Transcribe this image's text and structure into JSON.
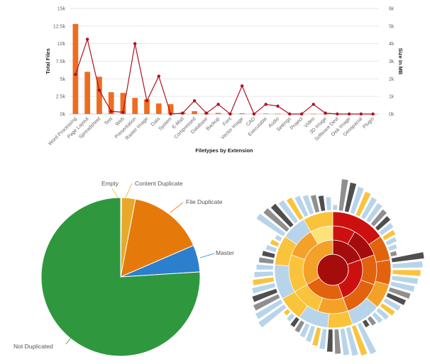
{
  "colors": {
    "bar": "#ef6c1f",
    "line": "#b0101f",
    "grid": "#e6e6e6",
    "pie_empty": "#f2c14f",
    "pie_content_duplicate": "#e8a92a",
    "pie_file_duplicate": "#e57a0a",
    "pie_master": "#2b7fcc",
    "pie_not_duplicated": "#2f973e"
  },
  "chart_data": [
    {
      "type": "bar",
      "xlabel": "Filetypes by Extension",
      "ylabel": "Total Files",
      "y2label": "Size in MB",
      "ylim": [
        0,
        15000
      ],
      "y2lim": [
        0,
        6000
      ],
      "yticks": [
        "0k",
        "2.5k",
        "5k",
        "7.5k",
        "10k",
        "12.5k",
        "15k"
      ],
      "y2ticks": [
        "0k",
        "1k",
        "2k",
        "3k",
        "4k",
        "5k",
        "6k"
      ],
      "categories": [
        "Word Processing",
        "Page Layout",
        "Spreadsheet",
        "Text",
        "Web",
        "Presentation",
        "Raster Image",
        "Data",
        "System",
        "E-Mail",
        "Compressed",
        "Database",
        "Backup",
        "Font",
        "Vector Image",
        "CAD",
        "Executable",
        "Audio",
        "Settings",
        "Project",
        "Video",
        "3D Image",
        "Software Devt",
        "Disk Image",
        "Geospacial",
        "Plugin"
      ],
      "series": [
        {
          "kind": "bar",
          "axis": "left",
          "values": [
            12800,
            6000,
            5300,
            3100,
            3000,
            2300,
            2100,
            1500,
            1400,
            200,
            400,
            150,
            150,
            80,
            100,
            50,
            60,
            40,
            30,
            30,
            25,
            20,
            15,
            10,
            10,
            5
          ]
        },
        {
          "kind": "line",
          "axis": "right",
          "values": [
            2250,
            4250,
            1350,
            150,
            100,
            4000,
            750,
            2150,
            0,
            50,
            750,
            50,
            550,
            0,
            1600,
            0,
            550,
            450,
            0,
            0,
            550,
            50,
            0,
            0,
            0,
            0
          ]
        }
      ],
      "grid": true
    },
    {
      "type": "pie",
      "slices": [
        {
          "label": "Empty",
          "value": 0.2
        },
        {
          "label": "Content Duplicate",
          "value": 2.8
        },
        {
          "label": "File Duplicate",
          "value": 15.5
        },
        {
          "label": "Master",
          "value": 5.5
        },
        {
          "label": "Not Duplicated",
          "value": 76.0
        }
      ]
    },
    {
      "type": "sunburst",
      "rings": 4,
      "palette": [
        "#a50d0d",
        "#cc1010",
        "#e2620e",
        "#f4a12a",
        "#f9c33c",
        "#fde27a",
        "#b7d4ea",
        "#8f8f8f",
        "#4f4f4f"
      ]
    }
  ]
}
